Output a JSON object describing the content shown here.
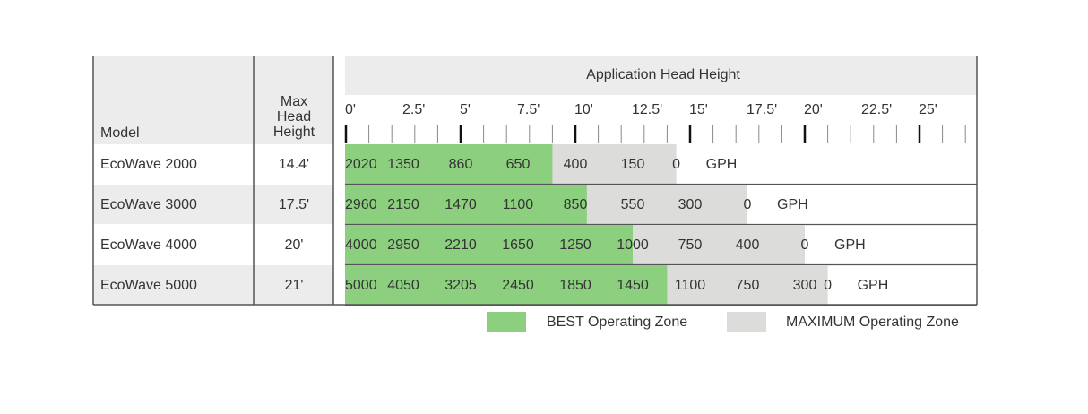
{
  "header": {
    "model": "Model",
    "max_head": [
      "Max",
      "Head",
      "Height"
    ],
    "title": "Application Head Height"
  },
  "axis": {
    "lim": [
      0,
      27.5
    ],
    "ticks": [
      {
        "value": 0,
        "label": "0'"
      },
      {
        "value": 2.5,
        "label": "2.5'"
      },
      {
        "value": 5,
        "label": "5'"
      },
      {
        "value": 7.5,
        "label": "7.5'"
      },
      {
        "value": 10,
        "label": "10'"
      },
      {
        "value": 12.5,
        "label": "12.5'"
      },
      {
        "value": 15,
        "label": "15'"
      },
      {
        "value": 17.5,
        "label": "17.5'"
      },
      {
        "value": 20,
        "label": "20'"
      },
      {
        "value": 22.5,
        "label": "22.5'"
      },
      {
        "value": 25,
        "label": "25'"
      }
    ],
    "minor_ticks": [
      0,
      1,
      2,
      3,
      4,
      5,
      6,
      7,
      8,
      9,
      10,
      11,
      12,
      13,
      14,
      15,
      16,
      17,
      18,
      19,
      20,
      21,
      22,
      23,
      24,
      25,
      26,
      27
    ]
  },
  "unit": "GPH",
  "legend": [
    {
      "label": "BEST Operating Zone",
      "color": "#8ccf7e"
    },
    {
      "label": "MAXIMUM Operating Zone",
      "color": "#dcdcda"
    }
  ],
  "rows": [
    {
      "model": "EcoWave 2000",
      "max_head": {
        "value": 14.4,
        "label": "14.4'"
      },
      "best_head": 9,
      "heads": [
        0,
        2.5,
        5,
        7.5,
        10,
        12.5,
        14.4
      ],
      "flows": [
        2020,
        1350,
        860,
        650,
        400,
        150,
        0
      ]
    },
    {
      "model": "EcoWave 3000",
      "max_head": {
        "value": 17.5,
        "label": "17.5'"
      },
      "best_head": 10.5,
      "heads": [
        0,
        2.5,
        5,
        7.5,
        10,
        12.5,
        15,
        17.5
      ],
      "flows": [
        2960,
        2150,
        1470,
        1100,
        850,
        550,
        300,
        0
      ]
    },
    {
      "model": "EcoWave 4000",
      "max_head": {
        "value": 20,
        "label": "20'"
      },
      "best_head": 12.5,
      "heads": [
        0,
        2.5,
        5,
        7.5,
        10,
        12.5,
        15,
        17.5,
        20
      ],
      "flows": [
        4000,
        2950,
        2210,
        1650,
        1250,
        1000,
        750,
        400,
        0
      ]
    },
    {
      "model": "EcoWave 5000",
      "max_head": {
        "value": 21,
        "label": "21'"
      },
      "best_head": 14,
      "heads": [
        0,
        2.5,
        5,
        7.5,
        10,
        12.5,
        15,
        17.5,
        20,
        21
      ],
      "flows": [
        5000,
        4050,
        3205,
        2450,
        1850,
        1450,
        1100,
        750,
        300,
        0
      ]
    }
  ]
}
